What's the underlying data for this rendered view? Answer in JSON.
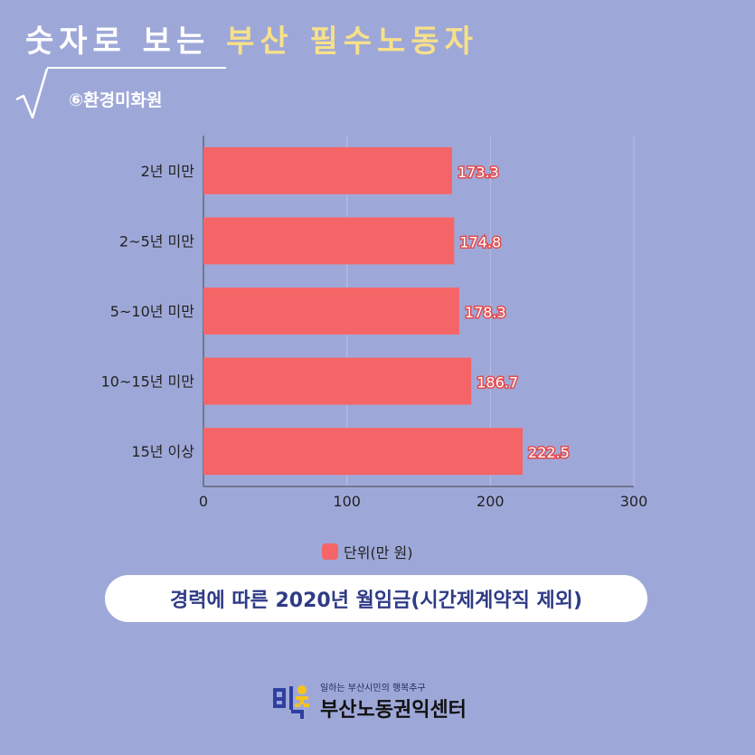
{
  "header": {
    "title_part1": "숫자로 보는",
    "title_part2": "부산 필수노동자",
    "subtitle": "⑥환경미화원"
  },
  "colors": {
    "background": "#9ea8d8",
    "bar": "#f56567",
    "title_highlight": "#f7e08a",
    "caption_text": "#2f3b86"
  },
  "chart_data": {
    "type": "bar",
    "orientation": "horizontal",
    "categories": [
      "2년 미만",
      "2~5년 미만",
      "5~10년 미만",
      "10~15년 미만",
      "15년 이상"
    ],
    "series": [
      {
        "name": "단위(만 원)",
        "values": [
          173.3,
          174.8,
          178.3,
          186.7,
          222.5
        ]
      }
    ],
    "value_labels": [
      "173.3",
      "174.8",
      "178.3",
      "186.7",
      "222.5"
    ],
    "xlim": [
      0,
      300
    ],
    "xticks": [
      "0",
      "100",
      "200",
      "300"
    ],
    "grid": true,
    "legend_position": "bottom"
  },
  "legend": {
    "label": "단위(만 원)"
  },
  "caption": "경력에 따른 2020년 월임금(시간제계약직 제외)",
  "footer": {
    "slogan": "일하는 부산시민의 행복추구",
    "org_name": "부산노동권익센터"
  }
}
